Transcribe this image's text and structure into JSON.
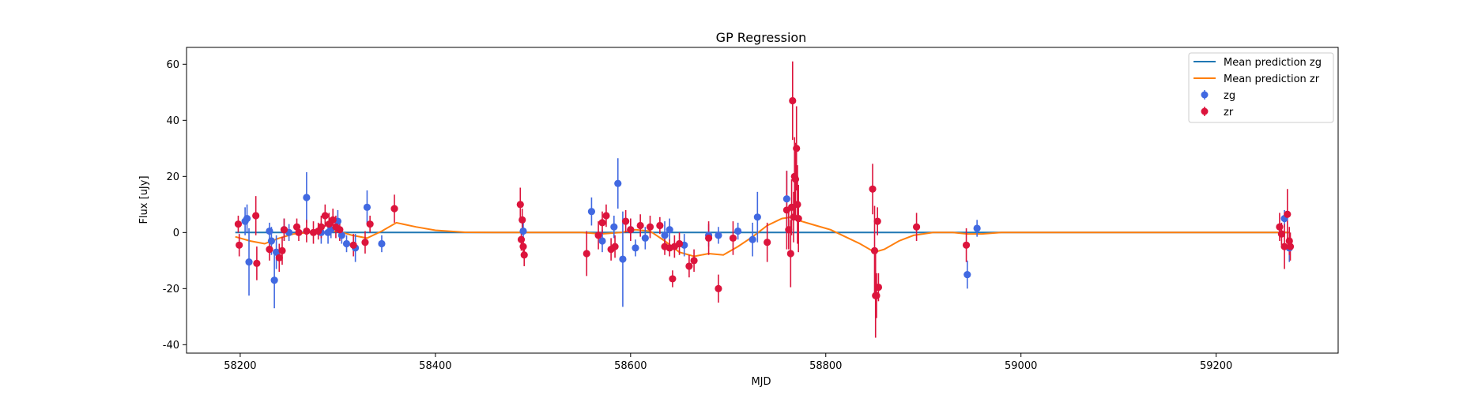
{
  "chart_data": {
    "type": "scatter",
    "title": "GP Regression",
    "xlabel": "MJD",
    "ylabel": "Flux [uJy]",
    "xlim": [
      58145,
      59325
    ],
    "ylim": [
      -43,
      66
    ],
    "xticks": [
      58200,
      58400,
      58600,
      58800,
      59000,
      59200
    ],
    "yticks": [
      -40,
      -20,
      0,
      20,
      40,
      60
    ],
    "legend_position": "top-right",
    "colors": {
      "zg": "#4169e1",
      "zr": "#dc143c",
      "mean_zg": "#1f77b4",
      "mean_zr": "#ff7f0e"
    },
    "mean_lines": [
      {
        "name": "Mean prediction zg",
        "color": "#1f77b4",
        "x": [
          58195,
          59275
        ],
        "y": [
          0,
          0
        ]
      },
      {
        "name": "Mean prediction zr",
        "color": "#ff7f0e",
        "x": [
          58195,
          58210,
          58225,
          58240,
          58255,
          58270,
          58285,
          58300,
          58315,
          58330,
          58345,
          58360,
          58380,
          58400,
          58430,
          58460,
          58490,
          58520,
          58550,
          58570,
          58590,
          58605,
          58620,
          58635,
          58650,
          58665,
          58680,
          58695,
          58710,
          58725,
          58740,
          58755,
          58765,
          58775,
          58790,
          58805,
          58820,
          58835,
          58850,
          58860,
          58875,
          58890,
          58910,
          58930,
          58945,
          58960,
          58980,
          59000,
          59050,
          59100,
          59150,
          59200,
          59250,
          59275
        ],
        "y": [
          -1.5,
          -3,
          -4,
          -2,
          -0.5,
          0,
          0,
          0.5,
          -1,
          -2,
          0.5,
          3.5,
          2,
          0.8,
          0.1,
          0,
          0,
          0,
          0,
          -0.5,
          0,
          1,
          0.5,
          -3,
          -7,
          -8.5,
          -7.5,
          -8,
          -5,
          -1.5,
          2.5,
          5,
          5.5,
          4,
          2.5,
          1,
          -1.5,
          -4,
          -7,
          -6,
          -3,
          -1,
          0,
          0,
          -0.5,
          -0.5,
          0,
          0,
          0,
          0,
          0,
          0,
          0,
          0
        ]
      }
    ],
    "series": [
      {
        "name": "zg",
        "color": "#4169e1",
        "points": [
          [
            58205,
            4,
            5
          ],
          [
            58207,
            5,
            5
          ],
          [
            58209,
            -10.5,
            12
          ],
          [
            58230,
            0.5,
            3
          ],
          [
            58232,
            -3,
            5
          ],
          [
            58235,
            -17,
            10
          ],
          [
            58237,
            -7,
            6
          ],
          [
            58245,
            1,
            4
          ],
          [
            58250,
            0,
            3
          ],
          [
            58268,
            12.5,
            9
          ],
          [
            58283,
            0,
            4
          ],
          [
            58290,
            0,
            4
          ],
          [
            58293,
            1,
            3
          ],
          [
            58300,
            4,
            4
          ],
          [
            58304,
            -1,
            3
          ],
          [
            58309,
            -4,
            3
          ],
          [
            58318,
            -5.5,
            5
          ],
          [
            58330,
            9,
            6
          ],
          [
            58345,
            -4,
            3
          ],
          [
            58490,
            0.5,
            3
          ],
          [
            58560,
            7.5,
            5
          ],
          [
            58571,
            -3,
            4
          ],
          [
            58583,
            2,
            4
          ],
          [
            58587,
            17.5,
            9
          ],
          [
            58592,
            -9.5,
            17
          ],
          [
            58600,
            1,
            4
          ],
          [
            58605,
            -5.5,
            3
          ],
          [
            58615,
            -2,
            4
          ],
          [
            58635,
            -1,
            5
          ],
          [
            58640,
            1,
            4
          ],
          [
            58655,
            -4.5,
            4
          ],
          [
            58680,
            -1,
            4
          ],
          [
            58690,
            -1,
            3
          ],
          [
            58710,
            0.5,
            3
          ],
          [
            58725,
            -2.5,
            6
          ],
          [
            58730,
            5.5,
            9
          ],
          [
            58760,
            12,
            10
          ],
          [
            58945,
            -15,
            5
          ],
          [
            58955,
            1.5,
            3
          ],
          [
            59270,
            5,
            3
          ],
          [
            59275,
            -5.5,
            5
          ]
        ]
      },
      {
        "name": "zr",
        "color": "#dc143c",
        "points": [
          [
            58198,
            3,
            3
          ],
          [
            58199,
            -4.5,
            4
          ],
          [
            58216,
            6,
            7
          ],
          [
            58217,
            -11,
            6
          ],
          [
            58230,
            -6,
            4
          ],
          [
            58240,
            -9,
            5
          ],
          [
            58243,
            -6.5,
            5
          ],
          [
            58245,
            1,
            4
          ],
          [
            58258,
            2,
            3
          ],
          [
            58260,
            0,
            3
          ],
          [
            58268,
            0.5,
            4
          ],
          [
            58275,
            0,
            4
          ],
          [
            58280,
            0.5,
            3
          ],
          [
            58283,
            2,
            4
          ],
          [
            58287,
            6,
            4
          ],
          [
            58291,
            3,
            4
          ],
          [
            58295,
            4.5,
            4
          ],
          [
            58298,
            2,
            4
          ],
          [
            58302,
            1,
            4
          ],
          [
            58316,
            -4.5,
            4
          ],
          [
            58328,
            -3.5,
            4
          ],
          [
            58333,
            3,
            3
          ],
          [
            58358,
            8.5,
            5
          ],
          [
            58487,
            10,
            6
          ],
          [
            58488,
            -2.5,
            4
          ],
          [
            58489,
            4.5,
            4
          ],
          [
            58490,
            -5,
            3
          ],
          [
            58491,
            -8,
            4
          ],
          [
            58555,
            -7.5,
            8
          ],
          [
            58567,
            -1,
            5
          ],
          [
            58571,
            3.5,
            4
          ],
          [
            58575,
            6,
            4
          ],
          [
            58580,
            -6,
            4
          ],
          [
            58584,
            -5,
            4
          ],
          [
            58595,
            4,
            4
          ],
          [
            58600,
            1,
            4
          ],
          [
            58610,
            2.5,
            4
          ],
          [
            58620,
            2,
            4
          ],
          [
            58630,
            2.5,
            3
          ],
          [
            58635,
            -5,
            3
          ],
          [
            58640,
            -5.5,
            3
          ],
          [
            58643,
            -16.5,
            3
          ],
          [
            58645,
            -5,
            4
          ],
          [
            58650,
            -4,
            4
          ],
          [
            58660,
            -12,
            4
          ],
          [
            58665,
            -10,
            4
          ],
          [
            58680,
            -2,
            6
          ],
          [
            58690,
            -20,
            5
          ],
          [
            58705,
            -2,
            6
          ],
          [
            58740,
            -3.5,
            7
          ],
          [
            58760,
            8,
            14
          ],
          [
            58762,
            1,
            7
          ],
          [
            58764,
            -7.5,
            12
          ],
          [
            58765,
            9,
            10
          ],
          [
            58766,
            47,
            14
          ],
          [
            58767,
            5.5,
            9
          ],
          [
            58768,
            20,
            14
          ],
          [
            58769,
            19,
            13
          ],
          [
            58770,
            30,
            15
          ],
          [
            58771,
            10,
            14
          ],
          [
            58772,
            5,
            12
          ],
          [
            58848,
            15.5,
            9
          ],
          [
            58850,
            -6.5,
            16
          ],
          [
            58851,
            -22.5,
            15
          ],
          [
            58852,
            -22.5,
            8
          ],
          [
            58853,
            4,
            5
          ],
          [
            58854,
            -19.5,
            5
          ],
          [
            58893,
            2,
            5
          ],
          [
            58944,
            -4.5,
            6
          ],
          [
            59265,
            2,
            5
          ],
          [
            59267,
            -0.5,
            4
          ],
          [
            59270,
            -5,
            8
          ],
          [
            59273,
            6.5,
            9
          ],
          [
            59275,
            -3,
            5
          ],
          [
            59276,
            -5,
            5
          ]
        ]
      }
    ]
  }
}
